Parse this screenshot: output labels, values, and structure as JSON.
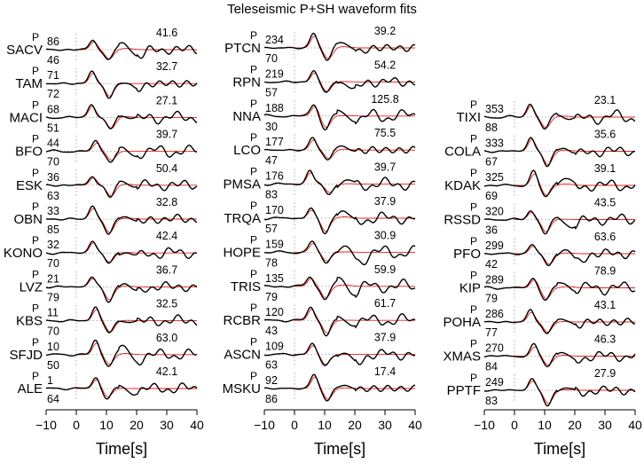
{
  "title": "Teleseismic P+SH waveform fits",
  "colors": {
    "observed": "#000000",
    "synthetic": "#e8211c",
    "reference": "#888888"
  },
  "chart_data": {
    "type": "line",
    "xlabel": "Time[s]",
    "xlim": [
      -10,
      40
    ],
    "xticks": [
      -10,
      0,
      10,
      20,
      30,
      40
    ],
    "traces": "observed (black) and synthetic (red) waveforms",
    "columns": [
      {
        "stations": [
          {
            "name": "SACV",
            "phase": "P",
            "azimuth": 86,
            "distance": 46,
            "amplitude": 41.6
          },
          {
            "name": "TAM",
            "phase": "P",
            "azimuth": 71,
            "distance": 72,
            "amplitude": 32.7
          },
          {
            "name": "MACI",
            "phase": "P",
            "azimuth": 68,
            "distance": 51,
            "amplitude": 27.1
          },
          {
            "name": "BFO",
            "phase": "P",
            "azimuth": 44,
            "distance": 70,
            "amplitude": 39.7
          },
          {
            "name": "ESK",
            "phase": "P",
            "azimuth": 36,
            "distance": 63,
            "amplitude": 50.4
          },
          {
            "name": "OBN",
            "phase": "P",
            "azimuth": 33,
            "distance": 85,
            "amplitude": 32.8
          },
          {
            "name": "KONO",
            "phase": "P",
            "azimuth": 32,
            "distance": 70,
            "amplitude": 42.4
          },
          {
            "name": "LVZ",
            "phase": "P",
            "azimuth": 21,
            "distance": 79,
            "amplitude": 36.7
          },
          {
            "name": "KBS",
            "phase": "P",
            "azimuth": 11,
            "distance": 70,
            "amplitude": 32.5
          },
          {
            "name": "SFJD",
            "phase": "P",
            "azimuth": 10,
            "distance": 50,
            "amplitude": 63.0
          },
          {
            "name": "ALE",
            "phase": "P",
            "azimuth": 1,
            "distance": 64,
            "amplitude": 42.1
          }
        ]
      },
      {
        "stations": [
          {
            "name": "PTCN",
            "phase": "P",
            "azimuth": 234,
            "distance": 70,
            "amplitude": 39.2
          },
          {
            "name": "RPN",
            "phase": "P",
            "azimuth": 219,
            "distance": 57,
            "amplitude": 54.2
          },
          {
            "name": "NNA",
            "phase": "P",
            "azimuth": 188,
            "distance": 30,
            "amplitude": 125.8
          },
          {
            "name": "LCO",
            "phase": "P",
            "azimuth": 177,
            "distance": 47,
            "amplitude": 75.5
          },
          {
            "name": "PMSA",
            "phase": "P",
            "azimuth": 176,
            "distance": 83,
            "amplitude": 39.7
          },
          {
            "name": "TRQA",
            "phase": "P",
            "azimuth": 170,
            "distance": 57,
            "amplitude": 37.9
          },
          {
            "name": "HOPE",
            "phase": "P",
            "azimuth": 159,
            "distance": 78,
            "amplitude": 30.9
          },
          {
            "name": "TRIS",
            "phase": "P",
            "azimuth": 135,
            "distance": 79,
            "amplitude": 59.9
          },
          {
            "name": "RCBR",
            "phase": "P",
            "azimuth": 120,
            "distance": 43,
            "amplitude": 61.7
          },
          {
            "name": "ASCN",
            "phase": "P",
            "azimuth": 109,
            "distance": 63,
            "amplitude": 37.9
          },
          {
            "name": "MSKU",
            "phase": "P",
            "azimuth": 92,
            "distance": 86,
            "amplitude": 17.4
          }
        ]
      },
      {
        "stations": [
          {
            "name": "TIXI",
            "phase": "P",
            "azimuth": 353,
            "distance": 88,
            "amplitude": 23.1
          },
          {
            "name": "COLA",
            "phase": "P",
            "azimuth": 333,
            "distance": 67,
            "amplitude": 35.6
          },
          {
            "name": "KDAK",
            "phase": "P",
            "azimuth": 325,
            "distance": 69,
            "amplitude": 39.1
          },
          {
            "name": "RSSD",
            "phase": "P",
            "azimuth": 320,
            "distance": 36,
            "amplitude": 43.5
          },
          {
            "name": "PFO",
            "phase": "P",
            "azimuth": 299,
            "distance": 42,
            "amplitude": 63.6
          },
          {
            "name": "KIP",
            "phase": "P",
            "azimuth": 289,
            "distance": 79,
            "amplitude": 78.9
          },
          {
            "name": "POHA",
            "phase": "P",
            "azimuth": 286,
            "distance": 77,
            "amplitude": 43.1
          },
          {
            "name": "XMAS",
            "phase": "P",
            "azimuth": 270,
            "distance": 84,
            "amplitude": 46.3
          },
          {
            "name": "PPTF",
            "phase": "P",
            "azimuth": 249,
            "distance": 83,
            "amplitude": 27.9
          }
        ]
      }
    ]
  }
}
